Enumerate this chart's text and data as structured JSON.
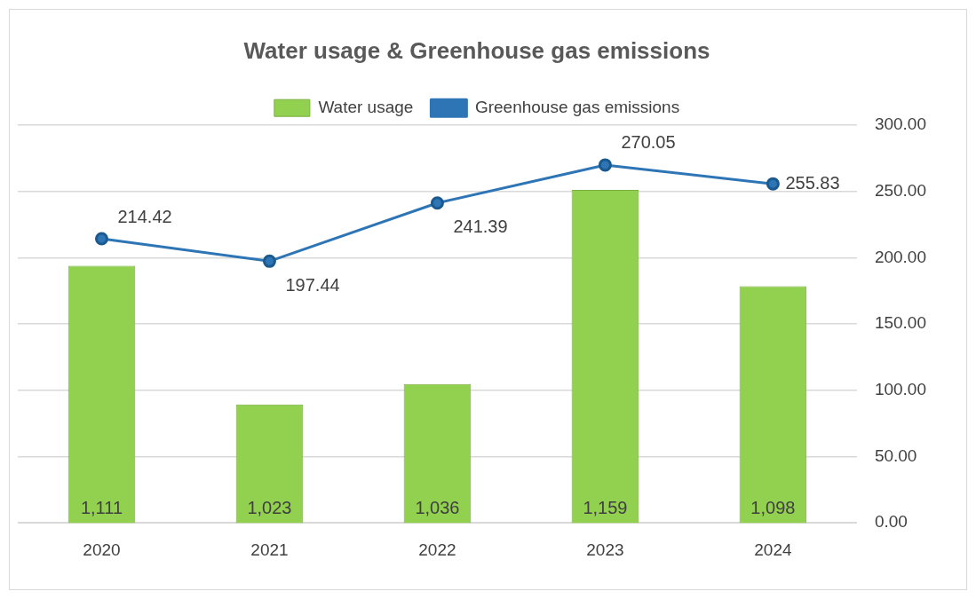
{
  "chart_data": {
    "type": "bar",
    "title": "Water usage & Greenhouse gas emissions",
    "categories": [
      "2020",
      "2021",
      "2022",
      "2023",
      "2024"
    ],
    "series": [
      {
        "name": "Water usage",
        "axis": "y2",
        "color": "#92d050",
        "values": [
          1111,
          1023,
          1036,
          1159,
          1098
        ],
        "value_labels": [
          "1,111",
          "1,023",
          "1,036",
          "1,159",
          "1,098"
        ]
      },
      {
        "name": "Greenhouse gas emissions",
        "type": "line",
        "axis": "y",
        "color": "#2e75b6",
        "values": [
          214.42,
          197.44,
          241.39,
          270.05,
          255.83
        ],
        "value_labels": [
          "214.42",
          "197.44",
          "241.39",
          "270.05",
          "255.83"
        ]
      }
    ],
    "ylim": [
      0,
      300
    ],
    "yticks": [
      {
        "value": 0,
        "label": "0.00"
      },
      {
        "value": 50,
        "label": "50.00"
      },
      {
        "value": 100,
        "label": "100.00"
      },
      {
        "value": 150,
        "label": "150.00"
      },
      {
        "value": 200,
        "label": "200.00"
      },
      {
        "value": 250,
        "label": "250.00"
      },
      {
        "value": 300,
        "label": "300.00"
      }
    ],
    "y2lim": [
      948,
      1200
    ],
    "grid": "y",
    "legend": "top",
    "marker": "circle"
  }
}
